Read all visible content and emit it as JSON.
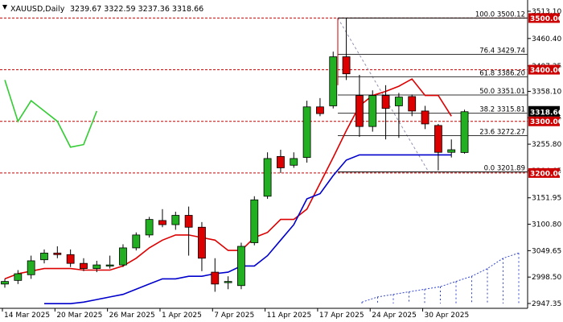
{
  "chart_data": {
    "type": "candlestick",
    "symbol": "XAUUSD,Daily",
    "ohlc_header": "3239.67 3322.59 3237.36 3318.66",
    "current_price": "3318.66",
    "ylim": [
      2944,
      3516
    ],
    "price_ticks": [
      "3513.10",
      "3460.40",
      "3407.35",
      "3358.10",
      "3306.95",
      "3255.80",
      "3204.65",
      "3151.95",
      "3100.80",
      "3049.65",
      "2998.50",
      "2947.35"
    ],
    "date_labels": [
      "14 Mar 2025",
      "20 Mar 2025",
      "26 Mar 2025",
      "1 Apr 2025",
      "7 Apr 2025",
      "11 Apr 2025",
      "17 Apr 2025",
      "24 Apr 2025",
      "30 Apr 2025"
    ],
    "horizontal_levels": [
      {
        "price": 3500,
        "label": "3500.00"
      },
      {
        "price": 3400,
        "label": "3400.00"
      },
      {
        "price": 3300,
        "label": "3300.00"
      },
      {
        "price": 3200,
        "label": "3200.00"
      }
    ],
    "fibonacci": [
      {
        "label": "100.0 3500.12",
        "price": 3500.12
      },
      {
        "label": "76.4 3429.74",
        "price": 3429.74
      },
      {
        "label": "61.8 3386.20",
        "price": 3386.2
      },
      {
        "label": "50.0 3351.01",
        "price": 3351.01
      },
      {
        "label": "38.2 3315.81",
        "price": 3315.81
      },
      {
        "label": "23.6 3272.27",
        "price": 3272.27
      },
      {
        "label": "0.0 3201.89",
        "price": 3201.89
      }
    ],
    "candles": [
      {
        "o": 2985,
        "h": 2995,
        "l": 2978,
        "c": 2990
      },
      {
        "o": 2992,
        "h": 3012,
        "l": 2985,
        "c": 3005
      },
      {
        "o": 3003,
        "h": 3040,
        "l": 2995,
        "c": 3030
      },
      {
        "o": 3032,
        "h": 3052,
        "l": 3025,
        "c": 3045
      },
      {
        "o": 3045,
        "h": 3058,
        "l": 3035,
        "c": 3042
      },
      {
        "o": 3042,
        "h": 3052,
        "l": 3018,
        "c": 3025
      },
      {
        "o": 3025,
        "h": 3035,
        "l": 3010,
        "c": 3015
      },
      {
        "o": 3015,
        "h": 3030,
        "l": 3008,
        "c": 3022
      },
      {
        "o": 3020,
        "h": 3040,
        "l": 3015,
        "c": 3022
      },
      {
        "o": 3022,
        "h": 3062,
        "l": 3018,
        "c": 3055
      },
      {
        "o": 3055,
        "h": 3085,
        "l": 3050,
        "c": 3080
      },
      {
        "o": 3080,
        "h": 3115,
        "l": 3075,
        "c": 3110
      },
      {
        "o": 3108,
        "h": 3130,
        "l": 3095,
        "c": 3100
      },
      {
        "o": 3100,
        "h": 3125,
        "l": 3090,
        "c": 3118
      },
      {
        "o": 3118,
        "h": 3135,
        "l": 3040,
        "c": 3095
      },
      {
        "o": 3095,
        "h": 3105,
        "l": 3010,
        "c": 3035
      },
      {
        "o": 3008,
        "h": 3035,
        "l": 2970,
        "c": 2985
      },
      {
        "o": 2988,
        "h": 3000,
        "l": 2975,
        "c": 2990
      },
      {
        "o": 2982,
        "h": 3065,
        "l": 2975,
        "c": 3058
      },
      {
        "o": 3065,
        "h": 3155,
        "l": 3060,
        "c": 3148
      },
      {
        "o": 3155,
        "h": 3240,
        "l": 3150,
        "c": 3228
      },
      {
        "o": 3232,
        "h": 3245,
        "l": 3200,
        "c": 3210
      },
      {
        "o": 3215,
        "h": 3240,
        "l": 3210,
        "c": 3228
      },
      {
        "o": 3230,
        "h": 3340,
        "l": 3220,
        "c": 3328
      },
      {
        "o": 3328,
        "h": 3345,
        "l": 3310,
        "c": 3315
      },
      {
        "o": 3330,
        "h": 3435,
        "l": 3325,
        "c": 3425
      },
      {
        "o": 3425,
        "h": 3500,
        "l": 3380,
        "c": 3392
      },
      {
        "o": 3350,
        "h": 3390,
        "l": 3270,
        "c": 3290
      },
      {
        "o": 3290,
        "h": 3360,
        "l": 3280,
        "c": 3350
      },
      {
        "o": 3350,
        "h": 3370,
        "l": 3265,
        "c": 3325
      },
      {
        "o": 3330,
        "h": 3355,
        "l": 3268,
        "c": 3347
      },
      {
        "o": 3348,
        "h": 3352,
        "l": 3310,
        "c": 3320
      },
      {
        "o": 3320,
        "h": 3330,
        "l": 3285,
        "c": 3295
      },
      {
        "o": 3292,
        "h": 3295,
        "l": 3205,
        "c": 3240
      },
      {
        "o": 3240,
        "h": 3265,
        "l": 3230,
        "c": 3245
      },
      {
        "o": 3239.67,
        "h": 3322.59,
        "l": 3237.36,
        "c": 3318.66
      }
    ],
    "red_line": [
      2995,
      3005,
      3010,
      3015,
      3015,
      3015,
      3012,
      3012,
      3012,
      3020,
      3035,
      3055,
      3070,
      3080,
      3080,
      3075,
      3070,
      3050,
      3050,
      3075,
      3085,
      3110,
      3110,
      3130,
      3180,
      3230,
      3282,
      3330,
      3350,
      3358,
      3368,
      3382,
      3350,
      3350,
      3310
    ],
    "blue_line": [
      2947,
      2947,
      2947,
      2950,
      2955,
      2960,
      2965,
      2975,
      2985,
      2995,
      2995,
      3000,
      3000,
      3005,
      3008,
      3020,
      3020,
      3040,
      3070,
      3100,
      3150,
      3160,
      3195,
      3225,
      3235,
      3235,
      3235,
      3235,
      3235,
      3235,
      3235,
      3235
    ],
    "green_line": [
      3380,
      3300,
      3340,
      3320,
      3300,
      3250,
      3255,
      3320
    ],
    "dotted_line": [
      2950,
      2960,
      2965,
      2970,
      2975,
      2980,
      2990,
      3000,
      3015,
      3035,
      3045
    ]
  }
}
